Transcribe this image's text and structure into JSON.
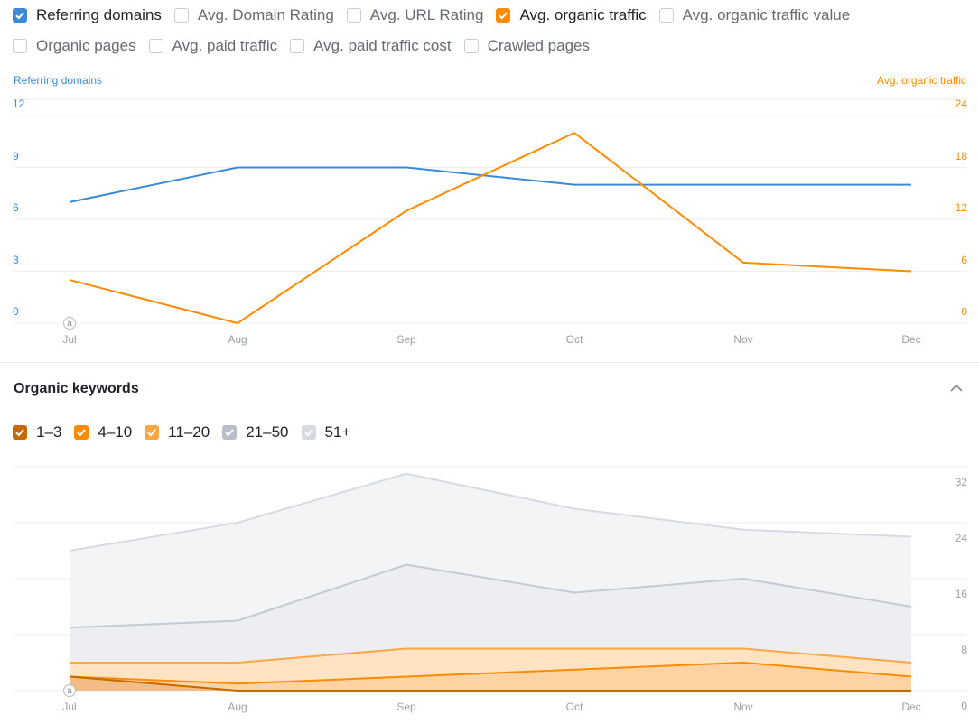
{
  "metrics": [
    {
      "label": "Referring domains",
      "checked": true,
      "color": "#3c8ad6"
    },
    {
      "label": "Avg. Domain Rating",
      "checked": false
    },
    {
      "label": "Avg. URL Rating",
      "checked": false
    },
    {
      "label": "Avg. organic traffic",
      "checked": true,
      "color": "#ff8c00"
    },
    {
      "label": "Avg. organic traffic value",
      "checked": false
    },
    {
      "label": "Organic pages",
      "checked": false
    },
    {
      "label": "Avg. paid traffic",
      "checked": false
    },
    {
      "label": "Avg. paid traffic cost",
      "checked": false
    },
    {
      "label": "Crawled pages",
      "checked": false
    }
  ],
  "marker_label": "a",
  "section": {
    "title": "Organic keywords"
  },
  "keyword_legend": [
    {
      "label": "1–3",
      "color": "#c46a00"
    },
    {
      "label": "4–10",
      "color": "#ff8c00"
    },
    {
      "label": "11–20",
      "color": "#ffa742"
    },
    {
      "label": "21–50",
      "color": "#b8bfc9"
    },
    {
      "label": "51+",
      "color": "#d6dbe2"
    }
  ],
  "chart_data": [
    {
      "type": "line",
      "x": [
        "Jul",
        "Aug",
        "Sep",
        "Oct",
        "Nov",
        "Dec"
      ],
      "left_axis": {
        "title": "Referring domains",
        "ticks": [
          "0",
          "3",
          "6",
          "9",
          "12"
        ],
        "ylim": [
          0,
          12
        ],
        "color": "#3c8ad6"
      },
      "right_axis": {
        "title": "Avg. organic traffic",
        "ticks": [
          "0",
          "6",
          "12",
          "18",
          "24"
        ],
        "ylim": [
          0,
          24
        ],
        "color": "#ff8c00"
      },
      "series": [
        {
          "name": "Referring domains",
          "axis": "left",
          "color": "#3c8ad6",
          "values": [
            7,
            9,
            9,
            8,
            8,
            8
          ]
        },
        {
          "name": "Avg. organic traffic",
          "axis": "right",
          "color": "#ff8c00",
          "values": [
            5,
            0,
            13,
            22,
            7,
            6
          ]
        }
      ],
      "grid": true
    },
    {
      "type": "area",
      "x": [
        "Jul",
        "Aug",
        "Sep",
        "Oct",
        "Nov",
        "Dec"
      ],
      "right_axis": {
        "ticks": [
          "0",
          "8",
          "16",
          "24",
          "32"
        ],
        "ylim": [
          0,
          32
        ]
      },
      "series": [
        {
          "name": "51+",
          "color": "#d6dbe2",
          "fill": "#f3f4f6",
          "values": [
            20,
            24,
            31,
            26,
            23,
            22
          ]
        },
        {
          "name": "21–50",
          "color": "#c4cad3",
          "fill": "#eceef1",
          "values": [
            9,
            10,
            18,
            14,
            16,
            12
          ]
        },
        {
          "name": "11–20",
          "color": "#ffa742",
          "fill": "#ffe3c2",
          "values": [
            4,
            4,
            6,
            6,
            6,
            4
          ]
        },
        {
          "name": "4–10",
          "color": "#ff8c00",
          "fill": "#ffd3a3",
          "values": [
            2,
            1,
            2,
            3,
            4,
            2
          ]
        },
        {
          "name": "1–3",
          "color": "#c46a00",
          "fill": "#f2bd85",
          "values": [
            2,
            0,
            0,
            0,
            0,
            0
          ]
        }
      ],
      "grid": true
    }
  ]
}
